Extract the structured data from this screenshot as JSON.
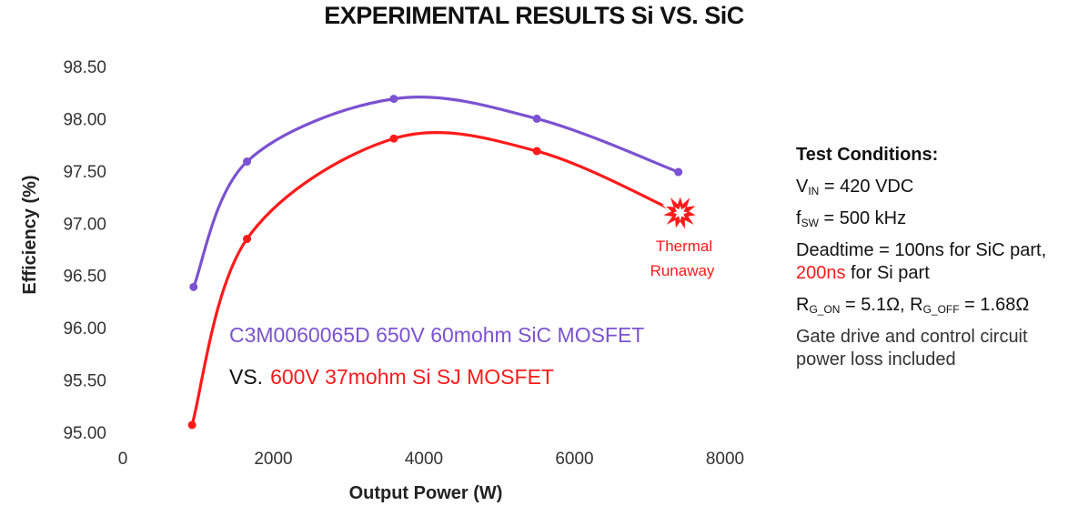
{
  "title": {
    "prefix": "EXPERIMENTAL RESULTS ",
    "suffix": "Si VS. SiC"
  },
  "chart_data": {
    "type": "line",
    "xlabel": "Output Power (W)",
    "ylabel": "Efficiency (%)",
    "xlim": [
      0,
      8000
    ],
    "ylim": [
      95.0,
      98.5
    ],
    "x_ticks": [
      "0",
      "2000",
      "4000",
      "6000",
      "8000"
    ],
    "y_ticks": [
      "95.00",
      "95.50",
      "96.00",
      "96.50",
      "97.00",
      "97.50",
      "98.00",
      "98.50"
    ],
    "grid": false,
    "series": [
      {
        "label_text": "C3M0060065D 650V 60mohm SiC MOSFET",
        "color": "#7b52d1",
        "x": [
          940,
          1650,
          3600,
          5500,
          7380
        ],
        "y": [
          96.39,
          97.59,
          98.19,
          98.0,
          97.49
        ]
      },
      {
        "label_text": "600V 37mohm Si SJ MOSFET",
        "color": "#ff1a1a",
        "x": [
          920,
          1650,
          3600,
          5500,
          7380
        ],
        "y": [
          95.07,
          96.85,
          97.81,
          97.69,
          97.1
        ]
      }
    ],
    "legend_vs": "VS.",
    "annotation": {
      "line1": "Thermal",
      "line2": "Runaway",
      "color": "#ff1a1a",
      "icon": "explosion-icon"
    }
  },
  "conditions": {
    "heading": "Test Conditions:",
    "vin": {
      "sym": "V",
      "sub": "IN",
      "text": " = 420 VDC"
    },
    "fsw": {
      "sym": "f",
      "sub": "SW",
      "text": " = 500 kHz"
    },
    "deadtime": {
      "a": "Deadtime = 100ns for SiC part, ",
      "b": "200ns",
      "c": " for Si part"
    },
    "rg": {
      "sym1": "R",
      "sub1": "G_ON",
      "text1": " = 5.1Ω, ",
      "sym2": "R",
      "sub2": "G_OFF",
      "text2": " = 1.68Ω"
    },
    "note": "Gate drive and control circuit power loss included"
  }
}
